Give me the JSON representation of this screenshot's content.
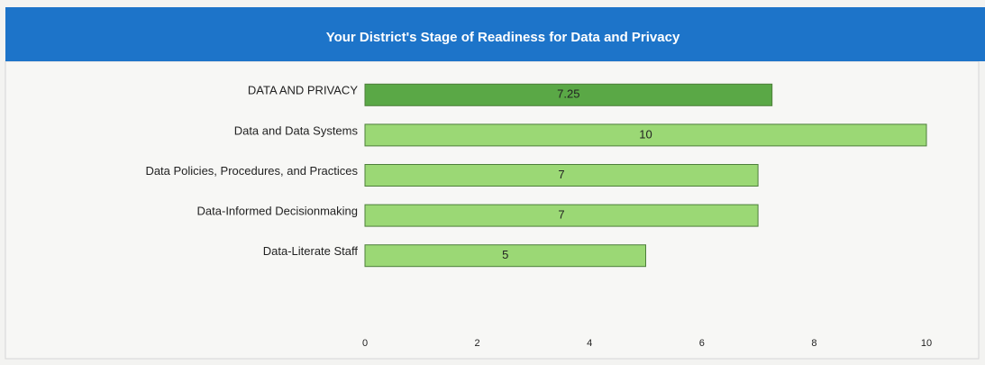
{
  "chart_data": {
    "type": "bar",
    "orientation": "horizontal",
    "title": "Your District's Stage of Readiness for Data and Privacy",
    "categories": [
      "DATA AND PRIVACY",
      "Data and Data Systems",
      "Data Policies, Procedures, and Practices",
      "Data-Informed Decisionmaking",
      "Data-Literate Staff"
    ],
    "values": [
      7.25,
      10,
      7,
      7,
      5
    ],
    "colors": [
      "#5aa846",
      "#9bd875",
      "#9bd875",
      "#9bd875",
      "#9bd875"
    ],
    "xlim": [
      0,
      10
    ],
    "xticks": [
      0,
      2,
      4,
      6,
      8,
      10
    ],
    "grid": false
  }
}
